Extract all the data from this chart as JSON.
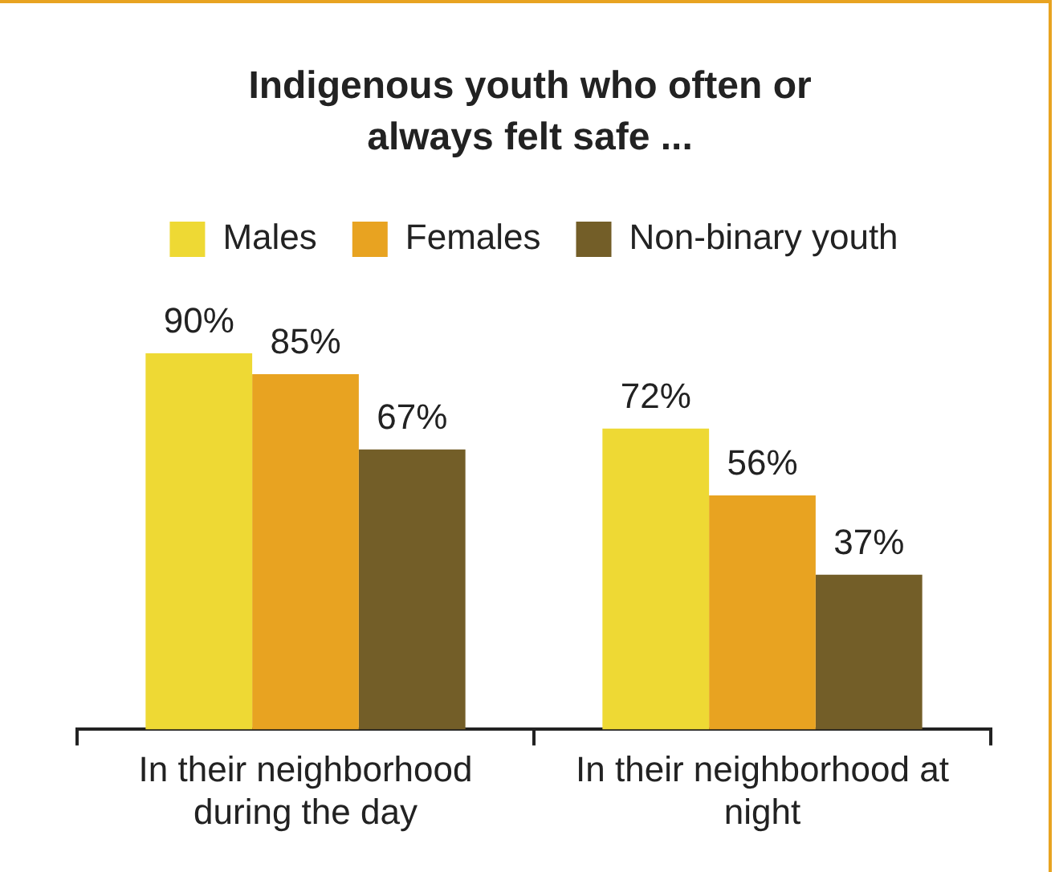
{
  "chart_data": {
    "type": "bar",
    "title": "Indigenous youth who often or always felt safe ...",
    "categories": [
      "In their neighborhood during the day",
      "In their neighborhood at night"
    ],
    "series": [
      {
        "name": "Males",
        "color": "#eed934",
        "values": [
          90,
          72
        ],
        "value_labels": [
          "90%",
          "72%"
        ]
      },
      {
        "name": "Females",
        "color": "#e8a321",
        "values": [
          85,
          56
        ],
        "value_labels": [
          "85%",
          "56%"
        ]
      },
      {
        "name": "Non-binary youth",
        "color": "#735e28",
        "values": [
          67,
          37
        ],
        "value_labels": [
          "67%",
          "37%"
        ]
      }
    ],
    "tick_labels": "x",
    "legend": "top",
    "grid": false
  }
}
